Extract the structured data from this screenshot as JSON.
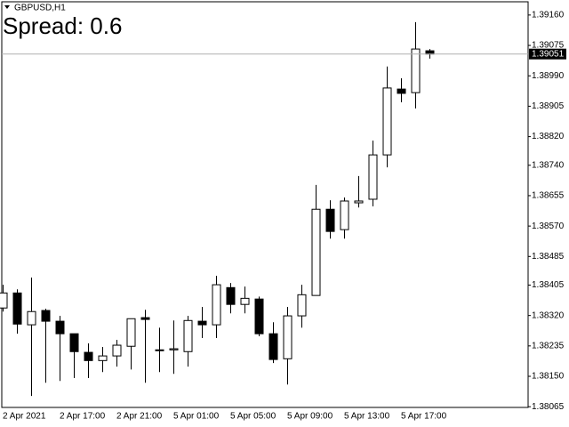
{
  "chart_data": {
    "type": "candlestick",
    "title": "GBPUSD,H1",
    "annotation": "Spread: 0.6",
    "categories": [
      "2 Apr 2021",
      null,
      null,
      null,
      "2 Apr 17:00",
      null,
      null,
      null,
      "2 Apr 21:00",
      null,
      null,
      null,
      "5 Apr 01:00",
      null,
      null,
      null,
      "5 Apr 05:00",
      null,
      null,
      null,
      "5 Apr 09:00",
      null,
      null,
      null,
      "5 Apr 13:00",
      null,
      null,
      null,
      "5 Apr 17:00",
      null,
      null
    ],
    "open": [
      1.38341,
      1.38383,
      1.38294,
      1.38334,
      1.38304,
      1.38269,
      1.38217,
      1.38194,
      1.38207,
      1.38234,
      1.38314,
      1.38224,
      1.38224,
      1.38219,
      1.38304,
      1.38294,
      1.38398,
      1.38351,
      1.38366,
      1.38269,
      1.38199,
      1.38319,
      1.38376,
      1.38617,
      1.3856,
      1.38635,
      1.38645,
      1.38769,
      1.38953,
      1.38943,
      1.3906
    ],
    "high": [
      1.38406,
      1.38393,
      1.38426,
      1.38339,
      1.38319,
      1.38269,
      1.38242,
      1.38232,
      1.38252,
      1.38311,
      1.38336,
      1.38286,
      1.38306,
      1.38319,
      1.38344,
      1.38431,
      1.38411,
      1.38401,
      1.38373,
      1.38301,
      1.38344,
      1.38406,
      1.38685,
      1.38642,
      1.3865,
      1.3871,
      1.38809,
      1.39016,
      1.38983,
      1.3914,
      1.39065
    ],
    "low": [
      1.38331,
      1.38269,
      1.38095,
      1.38132,
      1.38137,
      1.38145,
      1.38145,
      1.38162,
      1.38177,
      1.38169,
      1.38132,
      1.38162,
      1.38157,
      1.38177,
      1.38257,
      1.38257,
      1.38326,
      1.38326,
      1.38262,
      1.38187,
      1.38127,
      1.38286,
      1.38376,
      1.38535,
      1.38535,
      1.38622,
      1.38625,
      1.38734,
      1.38916,
      1.38899,
      1.39038
    ],
    "close": [
      1.38383,
      1.38296,
      1.38331,
      1.38304,
      1.38269,
      1.38219,
      1.38194,
      1.38207,
      1.38237,
      1.38311,
      1.38309,
      1.38222,
      1.38227,
      1.38306,
      1.38294,
      1.38406,
      1.38351,
      1.38368,
      1.38269,
      1.38197,
      1.38319,
      1.38378,
      1.38617,
      1.38555,
      1.3864,
      1.3864,
      1.38769,
      1.38956,
      1.38941,
      1.39065,
      1.39051
    ],
    "up_color": "#ffffff",
    "down_color": "#000000",
    "wick_color": "#000000",
    "current_price": 1.39051,
    "ylim": [
      1.38063,
      1.39197
    ],
    "yticks": [
      {
        "value": 1.3916,
        "label": "1.39160"
      },
      1.39075,
      {
        "value": 1.3899,
        "label": "1.38990"
      },
      1.38905,
      {
        "value": 1.3882,
        "label": "1.38820"
      },
      {
        "value": 1.3874,
        "label": "1.38740"
      },
      1.38655,
      {
        "value": 1.3857,
        "label": "1.38570"
      },
      1.38485,
      1.38405,
      {
        "value": 1.3832,
        "label": "1.38320"
      },
      1.38235,
      {
        "value": 1.3815,
        "label": "1.38150"
      },
      1.38065
    ]
  }
}
